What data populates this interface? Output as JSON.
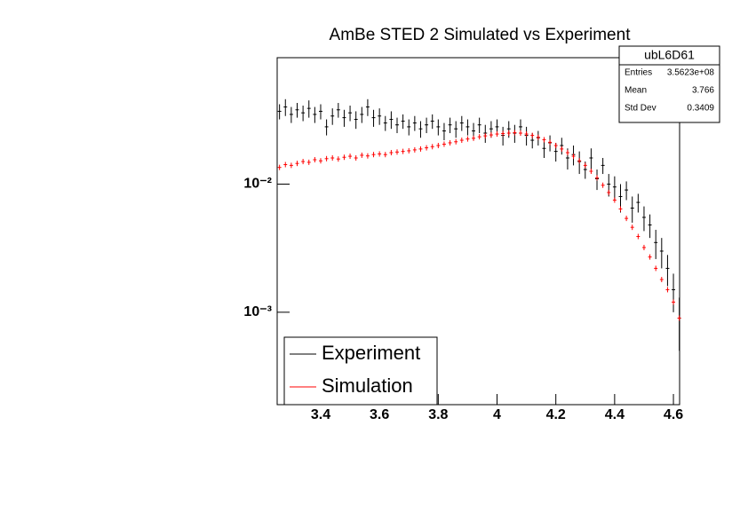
{
  "chart_data": {
    "type": "scatter",
    "title": "AmBe STED 2 Simulated vs Experiment",
    "log_y": true,
    "legend_position": "bottom-left",
    "x": [
      3.26,
      3.28,
      3.3,
      3.32,
      3.34,
      3.36,
      3.38,
      3.4,
      3.42,
      3.44,
      3.46,
      3.48,
      3.5,
      3.52,
      3.54,
      3.56,
      3.58,
      3.6,
      3.62,
      3.64,
      3.66,
      3.68,
      3.7,
      3.72,
      3.74,
      3.76,
      3.78,
      3.8,
      3.82,
      3.84,
      3.86,
      3.88,
      3.9,
      3.92,
      3.94,
      3.96,
      3.98,
      4.0,
      4.02,
      4.04,
      4.06,
      4.08,
      4.1,
      4.12,
      4.14,
      4.16,
      4.18,
      4.2,
      4.22,
      4.24,
      4.26,
      4.28,
      4.3,
      4.32,
      4.34,
      4.36,
      4.38,
      4.4,
      4.42,
      4.44,
      4.46,
      4.48,
      4.5,
      4.52,
      4.54,
      4.56,
      4.58,
      4.6,
      4.62
    ],
    "series": [
      {
        "name": "Experiment",
        "color": "#000000",
        "values": [
          0.037,
          0.04,
          0.035,
          0.038,
          0.036,
          0.039,
          0.035,
          0.037,
          0.028,
          0.034,
          0.038,
          0.033,
          0.036,
          0.032,
          0.035,
          0.04,
          0.033,
          0.034,
          0.03,
          0.032,
          0.029,
          0.031,
          0.028,
          0.03,
          0.027,
          0.029,
          0.031,
          0.028,
          0.026,
          0.029,
          0.027,
          0.03,
          0.028,
          0.026,
          0.029,
          0.025,
          0.027,
          0.028,
          0.024,
          0.027,
          0.025,
          0.028,
          0.024,
          0.022,
          0.023,
          0.019,
          0.021,
          0.018,
          0.02,
          0.016,
          0.017,
          0.015,
          0.013,
          0.016,
          0.011,
          0.014,
          0.01,
          0.0095,
          0.008,
          0.009,
          0.0065,
          0.0072,
          0.0055,
          0.0048,
          0.0035,
          0.003,
          0.0022,
          0.0015,
          0.0009
        ],
        "errors": [
          0.005,
          0.006,
          0.005,
          0.005,
          0.005,
          0.006,
          0.005,
          0.005,
          0.004,
          0.005,
          0.005,
          0.005,
          0.005,
          0.005,
          0.005,
          0.006,
          0.005,
          0.005,
          0.004,
          0.005,
          0.004,
          0.004,
          0.004,
          0.004,
          0.004,
          0.004,
          0.004,
          0.004,
          0.004,
          0.004,
          0.004,
          0.004,
          0.004,
          0.004,
          0.004,
          0.004,
          0.004,
          0.004,
          0.004,
          0.004,
          0.004,
          0.004,
          0.004,
          0.003,
          0.003,
          0.003,
          0.003,
          0.003,
          0.003,
          0.003,
          0.003,
          0.003,
          0.002,
          0.003,
          0.002,
          0.002,
          0.002,
          0.002,
          0.002,
          0.0015,
          0.0015,
          0.0012,
          0.0012,
          0.001,
          0.0009,
          0.0008,
          0.0006,
          0.0005,
          0.0004
        ]
      },
      {
        "name": "Simulation",
        "color": "#ff0000",
        "values": [
          0.0135,
          0.0142,
          0.014,
          0.0145,
          0.015,
          0.0148,
          0.0155,
          0.0152,
          0.0158,
          0.016,
          0.0157,
          0.0162,
          0.0165,
          0.016,
          0.0168,
          0.0166,
          0.017,
          0.0172,
          0.017,
          0.0176,
          0.0178,
          0.018,
          0.0182,
          0.0185,
          0.0188,
          0.0192,
          0.0196,
          0.02,
          0.0205,
          0.021,
          0.0214,
          0.022,
          0.0225,
          0.0228,
          0.0234,
          0.0238,
          0.0242,
          0.0246,
          0.0248,
          0.025,
          0.0252,
          0.025,
          0.0246,
          0.024,
          0.0232,
          0.0222,
          0.0212,
          0.02,
          0.0188,
          0.0176,
          0.0165,
          0.0152,
          0.014,
          0.0126,
          0.0112,
          0.0098,
          0.0086,
          0.0075,
          0.0064,
          0.0054,
          0.0046,
          0.0039,
          0.0032,
          0.0027,
          0.0022,
          0.0018,
          0.0015,
          0.0012,
          0.0009
        ]
      }
    ],
    "xlim": [
      3.252,
      4.621
    ],
    "ylim": [
      0.00019,
      0.097
    ],
    "xticks": [
      3.4,
      3.6,
      3.8,
      4,
      4.2,
      4.4,
      4.6
    ],
    "yticks": [
      {
        "value": 0.001,
        "label": "10⁻³"
      },
      {
        "value": 0.01,
        "label": "10⁻²"
      }
    ],
    "stats": {
      "name": "ubL6D61",
      "rows": [
        [
          "Entries",
          "3.5623e+08"
        ],
        [
          "Mean",
          "3.766"
        ],
        [
          "Std Dev",
          "0.3409"
        ]
      ]
    }
  }
}
